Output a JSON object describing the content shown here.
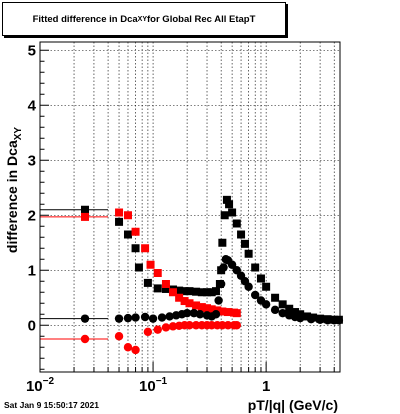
{
  "title": {
    "prefix": "Fitted difference in Dca",
    "subscript": "XY",
    "suffix": " for Global Rec All EtapT"
  },
  "timestamp": "Sat Jan  9 15:50:17 2021",
  "chart_data": {
    "type": "scatter",
    "title": "Fitted difference in Dca_XY for Global Rec All EtapT",
    "xlabel": "pT/|q| (GeV/c)",
    "ylabel_main": "difference in Dca",
    "ylabel_sub": "XY",
    "xscale": "log",
    "xlim": [
      0.01,
      4.5
    ],
    "ylim": [
      -0.85,
      5.15
    ],
    "grid": true,
    "x_ticks": [
      {
        "value": 0.01,
        "base": "10",
        "exp": "−2"
      },
      {
        "value": 0.1,
        "base": "10",
        "exp": "−1"
      },
      {
        "value": 1,
        "base": "1",
        "exp": ""
      }
    ],
    "y_ticks": [
      0,
      1,
      2,
      3,
      4,
      5
    ],
    "series": [
      {
        "marker": "square",
        "color": "#000000",
        "points": [
          [
            0.025,
            2.1
          ],
          [
            0.05,
            1.88
          ],
          [
            0.06,
            1.65
          ],
          [
            0.07,
            1.4
          ],
          [
            0.075,
            1.05
          ],
          [
            0.09,
            0.77
          ],
          [
            0.11,
            0.67
          ],
          [
            0.13,
            0.66
          ],
          [
            0.15,
            0.65
          ],
          [
            0.17,
            0.63
          ],
          [
            0.19,
            0.62
          ],
          [
            0.21,
            0.62
          ],
          [
            0.24,
            0.61
          ],
          [
            0.27,
            0.6
          ],
          [
            0.3,
            0.6
          ],
          [
            0.33,
            0.6
          ],
          [
            0.36,
            0.62
          ],
          [
            0.39,
            0.75
          ],
          [
            0.4,
            1.0
          ],
          [
            0.41,
            1.5
          ],
          [
            0.43,
            2.0
          ],
          [
            0.45,
            2.28
          ],
          [
            0.47,
            2.2
          ],
          [
            0.5,
            2.05
          ],
          [
            0.55,
            1.85
          ],
          [
            0.6,
            1.65
          ],
          [
            0.65,
            1.48
          ],
          [
            0.7,
            1.3
          ],
          [
            0.8,
            1.05
          ],
          [
            0.9,
            0.85
          ],
          [
            1.0,
            0.7
          ],
          [
            1.2,
            0.5
          ],
          [
            1.4,
            0.38
          ],
          [
            1.6,
            0.3
          ],
          [
            1.8,
            0.24
          ],
          [
            2.0,
            0.2
          ],
          [
            2.3,
            0.16
          ],
          [
            2.6,
            0.14
          ],
          [
            3.0,
            0.12
          ],
          [
            3.5,
            0.11
          ],
          [
            4.0,
            0.1
          ],
          [
            4.4,
            0.1
          ]
        ]
      },
      {
        "marker": "square",
        "color": "#ff0000",
        "points": [
          [
            0.025,
            1.97
          ],
          [
            0.05,
            2.05
          ],
          [
            0.06,
            2.0
          ],
          [
            0.07,
            1.7
          ],
          [
            0.085,
            1.4
          ],
          [
            0.095,
            1.1
          ],
          [
            0.11,
            0.95
          ],
          [
            0.13,
            0.75
          ],
          [
            0.15,
            0.6
          ],
          [
            0.17,
            0.5
          ],
          [
            0.19,
            0.44
          ],
          [
            0.21,
            0.4
          ],
          [
            0.24,
            0.36
          ],
          [
            0.27,
            0.33
          ],
          [
            0.3,
            0.31
          ],
          [
            0.33,
            0.29
          ],
          [
            0.37,
            0.27
          ],
          [
            0.41,
            0.25
          ],
          [
            0.46,
            0.24
          ],
          [
            0.52,
            0.23
          ],
          [
            0.55,
            0.22
          ]
        ]
      },
      {
        "marker": "circle",
        "color": "#000000",
        "points": [
          [
            0.025,
            0.12
          ],
          [
            0.05,
            0.12
          ],
          [
            0.06,
            0.13
          ],
          [
            0.07,
            0.14
          ],
          [
            0.085,
            0.15
          ],
          [
            0.1,
            0.12
          ],
          [
            0.12,
            0.14
          ],
          [
            0.14,
            0.16
          ],
          [
            0.16,
            0.18
          ],
          [
            0.18,
            0.2
          ],
          [
            0.2,
            0.22
          ],
          [
            0.23,
            0.22
          ],
          [
            0.26,
            0.2
          ],
          [
            0.3,
            0.18
          ],
          [
            0.33,
            0.16
          ],
          [
            0.36,
            0.2
          ],
          [
            0.38,
            0.45
          ],
          [
            0.4,
            0.75
          ],
          [
            0.42,
            1.05
          ],
          [
            0.44,
            1.2
          ],
          [
            0.46,
            1.18
          ],
          [
            0.5,
            1.1
          ],
          [
            0.55,
            1.0
          ],
          [
            0.6,
            0.9
          ],
          [
            0.65,
            0.8
          ],
          [
            0.7,
            0.7
          ],
          [
            0.8,
            0.55
          ],
          [
            0.9,
            0.45
          ],
          [
            1.0,
            0.38
          ],
          [
            1.2,
            0.28
          ],
          [
            1.4,
            0.22
          ],
          [
            1.6,
            0.18
          ],
          [
            1.8,
            0.15
          ],
          [
            2.0,
            0.13
          ],
          [
            2.5,
            0.11
          ],
          [
            3.0,
            0.1
          ],
          [
            3.5,
            0.09
          ],
          [
            4.0,
            0.09
          ],
          [
            4.4,
            0.09
          ]
        ]
      },
      {
        "marker": "circle",
        "color": "#ff0000",
        "points": [
          [
            0.025,
            -0.25
          ],
          [
            0.05,
            -0.2
          ],
          [
            0.06,
            -0.4
          ],
          [
            0.07,
            -0.45
          ],
          [
            0.09,
            -0.12
          ],
          [
            0.11,
            -0.08
          ],
          [
            0.13,
            -0.04
          ],
          [
            0.15,
            -0.02
          ],
          [
            0.17,
            -0.01
          ],
          [
            0.19,
            0.0
          ],
          [
            0.21,
            0.0
          ],
          [
            0.24,
            0.0
          ],
          [
            0.27,
            0.0
          ],
          [
            0.3,
            0.0
          ],
          [
            0.33,
            0.0
          ],
          [
            0.37,
            0.0
          ],
          [
            0.41,
            0.0
          ],
          [
            0.46,
            0.0
          ],
          [
            0.52,
            0.0
          ],
          [
            0.55,
            0.0
          ]
        ]
      }
    ],
    "first_point_errors": [
      {
        "series": 0,
        "xlow": 0.01,
        "xhigh": 0.04
      },
      {
        "series": 1,
        "xlow": 0.01,
        "xhigh": 0.04
      },
      {
        "series": 2,
        "xlow": 0.01,
        "xhigh": 0.04
      },
      {
        "series": 3,
        "xlow": 0.01,
        "xhigh": 0.04
      }
    ]
  }
}
